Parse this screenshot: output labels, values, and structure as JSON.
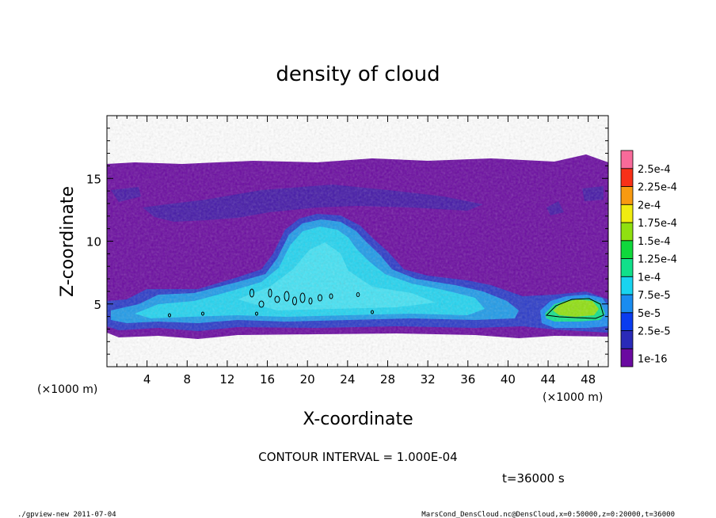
{
  "chart_data": {
    "type": "heatmap",
    "title": "density of cloud",
    "xlabel": "X-coordinate",
    "ylabel": "Z-coordinate",
    "x_unit": "(×1000 m)",
    "y_unit": "(×1000 m)",
    "xlim": [
      0,
      50
    ],
    "ylim": [
      0,
      20
    ],
    "x_ticks": [
      {
        "value": 4,
        "label": "4"
      },
      {
        "value": 8,
        "label": "8"
      },
      {
        "value": 12,
        "label": "12"
      },
      {
        "value": 16,
        "label": "16"
      },
      {
        "value": 20,
        "label": "20"
      },
      {
        "value": 24,
        "label": "24"
      },
      {
        "value": 28,
        "label": "28"
      },
      {
        "value": 32,
        "label": "32"
      },
      {
        "value": 36,
        "label": "36"
      },
      {
        "value": 40,
        "label": "40"
      },
      {
        "value": 44,
        "label": "44"
      },
      {
        "value": 48,
        "label": "48"
      }
    ],
    "y_ticks": [
      {
        "value": 5,
        "label": "5"
      },
      {
        "value": 10,
        "label": "10"
      },
      {
        "value": 15,
        "label": "15"
      }
    ],
    "colorbar": {
      "labels": [
        "1e-16",
        "2.5e-5",
        "5e-5",
        "7.5e-5",
        "1e-4",
        "1.25e-4",
        "1.5e-4",
        "1.75e-4",
        "2e-4",
        "2.25e-4",
        "2.5e-4"
      ],
      "colors": [
        "#6a0aa0",
        "#2a2ab8",
        "#0a3cf0",
        "#1a8cf0",
        "#18d4f0",
        "#10e08a",
        "#10d83c",
        "#90e010",
        "#f0ec10",
        "#f89a10",
        "#f83018",
        "#f86a9a"
      ]
    },
    "contour_interval": "CONTOUR INTERVAL = 1.000E-04",
    "time_label": "t=36000 s"
  },
  "footer": {
    "left": "./gpview-new  2011-07-04",
    "right": "MarsCond_DensCloud.nc@DensCloud,x=0:50000,z=0:20000,t=36000"
  }
}
